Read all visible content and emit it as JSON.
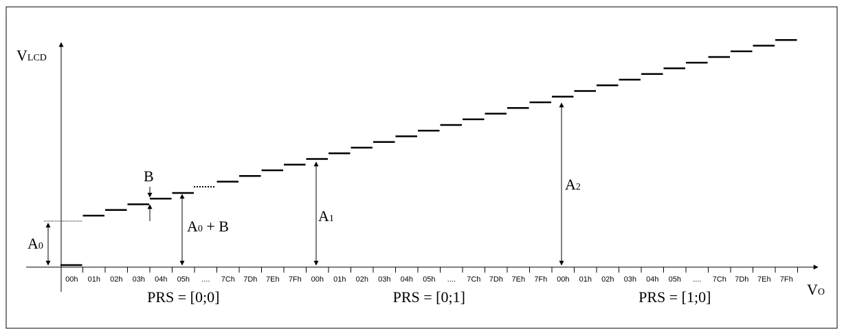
{
  "axes": {
    "y_label_main": "V",
    "y_label_sub": "LCD",
    "x_label_main": "V",
    "x_label_sub": "O"
  },
  "groups": [
    {
      "prs": "PRS = [0;0]",
      "ticks": [
        "00h",
        "01h",
        "02h",
        "03h",
        "04h",
        "05h",
        "....",
        "7Ch",
        "7Dh",
        "7Eh",
        "7Fh"
      ]
    },
    {
      "prs": "PRS = [0;1]",
      "ticks": [
        "00h",
        "01h",
        "02h",
        "03h",
        "04h",
        "05h",
        "....",
        "7Ch",
        "7Dh",
        "7Eh",
        "7Fh"
      ]
    },
    {
      "prs": "PRS = [1;0]",
      "ticks": [
        "00h",
        "01h",
        "02h",
        "03h",
        "04h",
        "05h",
        "....",
        "7Ch",
        "7Dh",
        "7Eh",
        "7Fh"
      ]
    }
  ],
  "annotations": {
    "a0_main": "A",
    "a0_sub": "0",
    "b": "B",
    "a0b_main": "A",
    "a0b_sub": "0",
    "a0b_rest": " + B",
    "a1_main": "A",
    "a1_sub": "1",
    "a2_main": "A",
    "a2_sub": "2"
  }
}
